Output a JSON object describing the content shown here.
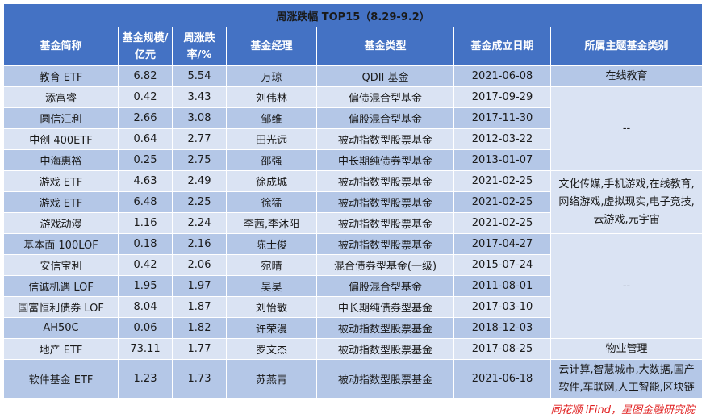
{
  "title": "周涨跌幅 TOP15（8.29-9.2）",
  "headers": [
    "基金简称",
    "基金规模/亿元",
    "周涨跌率/%",
    "基金经理",
    "基金类型",
    "基金成立日期",
    "所属主题基金类别"
  ],
  "rows": [
    {
      "name": "教育 ETF",
      "size": "6.82",
      "change": "5.54",
      "manager": "万琼",
      "type": "QDII 基金",
      "date": "2021-06-08"
    },
    {
      "name": "添富睿",
      "size": "0.42",
      "change": "3.43",
      "manager": "刘伟林",
      "type": "偏债混合型基金",
      "date": "2017-09-29"
    },
    {
      "name": "圆信汇利",
      "size": "2.66",
      "change": "3.08",
      "manager": "邹维",
      "type": "偏股混合型基金",
      "date": "2017-11-30"
    },
    {
      "name": "中创 400ETF",
      "size": "0.64",
      "change": "2.77",
      "manager": "田光远",
      "type": "被动指数型股票基金",
      "date": "2012-03-22"
    },
    {
      "name": "中海惠裕",
      "size": "0.25",
      "change": "2.75",
      "manager": "邵强",
      "type": "中长期纯债券型基金",
      "date": "2013-01-07"
    },
    {
      "name": "游戏 ETF",
      "size": "4.63",
      "change": "2.49",
      "manager": "徐成城",
      "type": "被动指数型股票基金",
      "date": "2021-02-25"
    },
    {
      "name": "游戏 ETF",
      "size": "6.48",
      "change": "2.25",
      "manager": "徐猛",
      "type": "被动指数型股票基金",
      "date": "2021-02-25"
    },
    {
      "name": "游戏动漫",
      "size": "1.16",
      "change": "2.24",
      "manager": "李茜,李沐阳",
      "type": "被动指数型股票基金",
      "date": "2021-02-25"
    },
    {
      "name": "基本面 100LOF",
      "size": "0.18",
      "change": "2.16",
      "manager": "陈士俊",
      "type": "被动指数型股票基金",
      "date": "2017-04-27"
    },
    {
      "name": "安信宝利",
      "size": "0.42",
      "change": "2.06",
      "manager": "宛晴",
      "type": "混合债券型基金(一级)",
      "date": "2015-07-24"
    },
    {
      "name": "信诚机遇 LOF",
      "size": "1.95",
      "change": "1.97",
      "manager": "吴昊",
      "type": "偏股混合型基金",
      "date": "2011-08-01"
    },
    {
      "name": "国富恒利债券 LOF",
      "size": "8.04",
      "change": "1.87",
      "manager": "刘怡敏",
      "type": "中长期纯债券型基金",
      "date": "2017-03-10"
    },
    {
      "name": "AH50C",
      "size": "0.06",
      "change": "1.82",
      "manager": "许荣漫",
      "type": "被动指数型股票基金",
      "date": "2018-12-03"
    },
    {
      "name": "地产 ETF",
      "size": "73.11",
      "change": "1.77",
      "manager": "罗文杰",
      "type": "被动指数型股票基金",
      "date": "2017-08-25"
    },
    {
      "name": "软件基金 ETF",
      "size": "1.23",
      "change": "1.73",
      "manager": "苏燕青",
      "type": "被动指数型股票基金",
      "date": "2021-06-18"
    }
  ],
  "themes": {
    "education": "在线教育",
    "dash1": "--",
    "gaming": [
      "文化传媒,手机游戏,在线教育,",
      "网络游戏,虚拟现实,电子竞技,",
      "云游戏,元宇宙"
    ],
    "dash2": "--",
    "realestate": "物业管理",
    "software": [
      "云计算,智慧城市,大数据,国产",
      "软件,车联网,人工智能,区块链"
    ]
  },
  "source": "同花顺 iFind，星图金融研究院"
}
